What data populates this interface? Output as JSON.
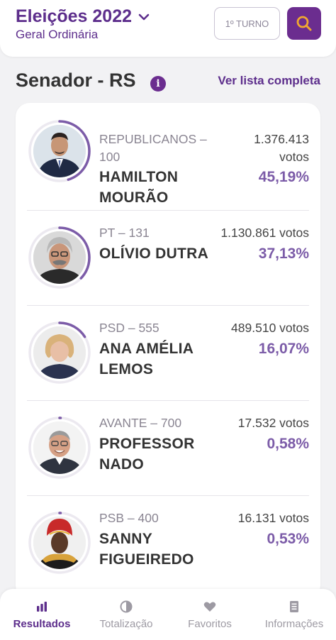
{
  "header": {
    "election_title": "Eleições 2022",
    "election_subtitle": "Geral Ordinária",
    "turno_label": "1º TURNO"
  },
  "section": {
    "title": "Senador - RS",
    "info_glyph": "i",
    "full_list_label": "Ver lista completa"
  },
  "candidates": [
    {
      "party": "REPUBLICANOS –",
      "party2": "100",
      "name1": "HAMILTON",
      "name2": "MOURÃO",
      "votes1": "1.376.413",
      "votes2": "votos",
      "pct": "45,19%",
      "share": 45.19
    },
    {
      "party": "PT – 131",
      "name1": "OLÍVIO DUTRA",
      "votes1": "1.130.861 votos",
      "pct": "37,13%",
      "share": 37.13
    },
    {
      "party": "PSD – 555",
      "name1": "ANA AMÉLIA",
      "name2": "LEMOS",
      "votes1": "489.510 votos",
      "pct": "16,07%",
      "share": 16.07
    },
    {
      "party": "AVANTE – 700",
      "name1": "PROFESSOR",
      "name2": "NADO",
      "votes1": "17.532 votos",
      "pct": "0,58%",
      "share": 0.58
    },
    {
      "party": "PSB – 400",
      "name1": "SANNY",
      "name2": "FIGUEIREDO",
      "votes1": "16.131 votos",
      "pct": "0,53%",
      "share": 0.53
    }
  ],
  "nav": {
    "items": [
      {
        "label": "Resultados",
        "icon": "bar-chart-icon",
        "active": true
      },
      {
        "label": "Totalização",
        "icon": "pie-icon",
        "active": false
      },
      {
        "label": "Favoritos",
        "icon": "heart-icon",
        "active": false
      },
      {
        "label": "Informações",
        "icon": "document-icon",
        "active": false
      }
    ]
  },
  "colors": {
    "brand": "#5d2e8c",
    "accent": "#6b2d8f",
    "percent": "#7c5ca8",
    "search_icon": "#f0a830"
  }
}
